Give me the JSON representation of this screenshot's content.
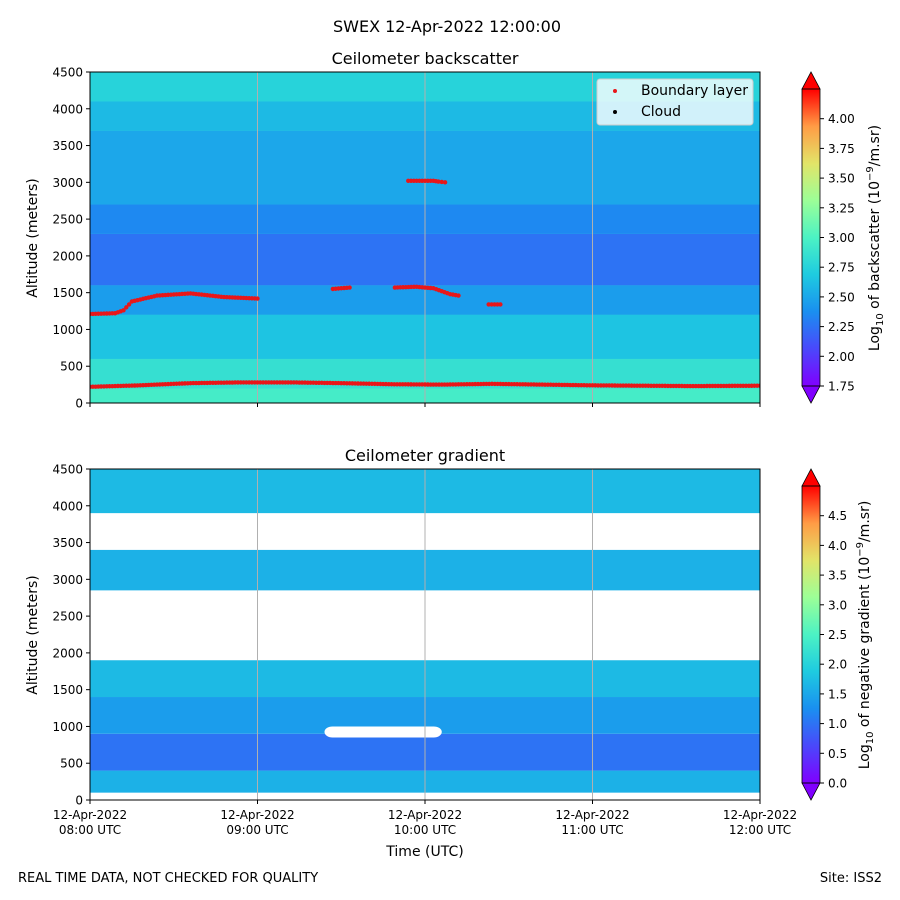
{
  "figure": {
    "suptitle": "SWEX 12-Apr-2022 12:00:00",
    "footer_left": "REAL TIME DATA, NOT CHECKED FOR QUALITY",
    "footer_right": "Site: ISS2"
  },
  "chart_data": [
    {
      "type": "heatmap",
      "title": "Ceilometer backscatter",
      "xlabel": "",
      "ylabel": "Altitude (meters)",
      "ylim": [
        0,
        4500
      ],
      "yticks": [
        0,
        500,
        1000,
        1500,
        2000,
        2500,
        3000,
        3500,
        4000,
        4500
      ],
      "x_ticks_hours": [
        8,
        9,
        10,
        11,
        12
      ],
      "colorbar": {
        "label": "Log10 of backscatter (10^-9/m.sr)",
        "label_main": "Log",
        "label_sub": "10",
        "label_rest": " of backscatter (10",
        "label_sup": "−9",
        "label_end": "/m.sr)",
        "range": [
          1.75,
          4.25
        ],
        "ticks": [
          "1.75",
          "2.00",
          "2.25",
          "2.50",
          "2.75",
          "3.00",
          "3.25",
          "3.50",
          "3.75",
          "4.00"
        ]
      },
      "field_bands": [
        {
          "alt": [
            0,
            200
          ],
          "value": 2.95
        },
        {
          "alt": [
            200,
            600
          ],
          "value": 2.85
        },
        {
          "alt": [
            600,
            1200
          ],
          "value": 2.65
        },
        {
          "alt": [
            1200,
            1600
          ],
          "value": 2.45
        },
        {
          "alt": [
            1600,
            2300
          ],
          "value": 2.25
        },
        {
          "alt": [
            2300,
            2700
          ],
          "value": 2.35
        },
        {
          "alt": [
            2700,
            3700
          ],
          "value": 2.5
        },
        {
          "alt": [
            3700,
            4100
          ],
          "value": 2.6
        },
        {
          "alt": [
            4100,
            4500
          ],
          "value": 2.75
        }
      ],
      "legend": {
        "location": "upper right",
        "entries": [
          {
            "label": "Boundary layer",
            "color": "#e8171a"
          },
          {
            "label": "Cloud",
            "color": "#000000"
          }
        ]
      },
      "boundary_layer_series": [
        {
          "name": "low",
          "points": [
            [
              8.0,
              220
            ],
            [
              8.3,
              240
            ],
            [
              8.6,
              270
            ],
            [
              8.9,
              280
            ],
            [
              9.2,
              280
            ],
            [
              9.5,
              270
            ],
            [
              9.8,
              255
            ],
            [
              10.1,
              250
            ],
            [
              10.4,
              260
            ],
            [
              10.7,
              250
            ],
            [
              11.0,
              240
            ],
            [
              11.3,
              235
            ],
            [
              11.6,
              230
            ],
            [
              12.0,
              235
            ]
          ]
        },
        {
          "name": "upper-1",
          "points": [
            [
              8.0,
              1210
            ],
            [
              8.15,
              1220
            ],
            [
              8.2,
              1260
            ],
            [
              8.25,
              1380
            ],
            [
              8.4,
              1460
            ],
            [
              8.6,
              1490
            ],
            [
              8.8,
              1440
            ],
            [
              9.0,
              1420
            ]
          ]
        },
        {
          "name": "upper-2",
          "points": [
            [
              9.45,
              1550
            ],
            [
              9.55,
              1570
            ]
          ]
        },
        {
          "name": "upper-3",
          "points": [
            [
              9.82,
              1570
            ],
            [
              9.95,
              1580
            ],
            [
              10.05,
              1560
            ],
            [
              10.15,
              1480
            ],
            [
              10.2,
              1460
            ]
          ]
        },
        {
          "name": "upper-4",
          "points": [
            [
              10.38,
              1340
            ],
            [
              10.45,
              1340
            ]
          ]
        },
        {
          "name": "upper-5",
          "points": [
            [
              9.9,
              3020
            ],
            [
              10.05,
              3020
            ],
            [
              10.08,
              3010
            ],
            [
              10.12,
              3000
            ]
          ]
        }
      ]
    },
    {
      "type": "heatmap",
      "title": "Ceilometer gradient",
      "xlabel": "Time (UTC)",
      "ylabel": "Altitude (meters)",
      "ylim": [
        0,
        4500
      ],
      "yticks": [
        0,
        500,
        1000,
        1500,
        2000,
        2500,
        3000,
        3500,
        4000,
        4500
      ],
      "x_ticks": [
        {
          "date": "12-Apr-2022",
          "time": "08:00 UTC"
        },
        {
          "date": "12-Apr-2022",
          "time": "09:00 UTC"
        },
        {
          "date": "12-Apr-2022",
          "time": "10:00 UTC"
        },
        {
          "date": "12-Apr-2022",
          "time": "11:00 UTC"
        },
        {
          "date": "12-Apr-2022",
          "time": "12:00 UTC"
        }
      ],
      "colorbar": {
        "label": "Log10 of negative gradient (10^-9/m.sr)",
        "label_main": "Log",
        "label_sub": "10",
        "label_rest": " of negative gradient (10",
        "label_sup": "−9",
        "label_end": "/m.sr)",
        "range": [
          0.0,
          5.0
        ],
        "ticks": [
          "0.0",
          "0.5",
          "1.0",
          "1.5",
          "2.0",
          "2.5",
          "3.0",
          "3.5",
          "4.0",
          "4.5"
        ]
      },
      "field_regions": [
        {
          "alt": [
            100,
            400
          ],
          "value": 1.6
        },
        {
          "alt": [
            400,
            900
          ],
          "value": 1.0
        },
        {
          "alt": [
            900,
            1400
          ],
          "value": 1.4
        },
        {
          "alt": [
            1400,
            1900
          ],
          "value": 1.7
        },
        {
          "alt": [
            2850,
            3400
          ],
          "value": 1.6
        },
        {
          "alt": [
            3900,
            4500
          ],
          "value": 1.7
        }
      ],
      "no_data_gap": {
        "time": [
          9.4,
          10.1
        ],
        "alt": [
          850,
          1000
        ]
      }
    }
  ]
}
